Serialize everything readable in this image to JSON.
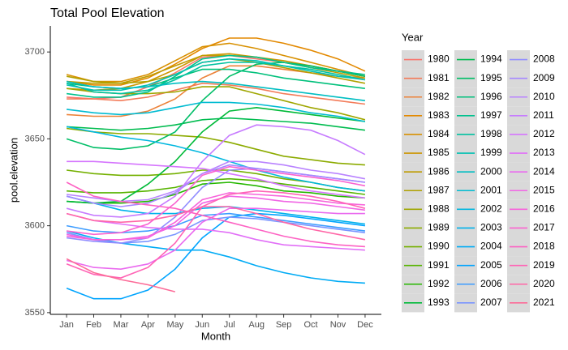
{
  "chart_data": {
    "type": "line",
    "title": "Total Pool Elevation",
    "x_label": "Month",
    "y_label": "pool.elevation",
    "legend_title": "Year",
    "legend_position": "right",
    "grid": false,
    "categories": [
      "Jan",
      "Feb",
      "Mar",
      "Apr",
      "May",
      "Jun",
      "Jul",
      "Aug",
      "Sep",
      "Oct",
      "Nov",
      "Dec"
    ],
    "ylim": [
      3549,
      3715
    ],
    "yticks": [
      3550,
      3600,
      3650,
      3700
    ],
    "series": [
      {
        "name": "1980",
        "color": "#F8766D",
        "values": [
          3674,
          3673,
          3674,
          3680,
          3688,
          3697,
          3698,
          3696,
          3694,
          3692,
          3689,
          3686
        ]
      },
      {
        "name": "1981",
        "color": "#F37B59",
        "values": [
          3673,
          3673,
          3672,
          3674,
          3678,
          3682,
          3681,
          3679,
          3676,
          3674,
          3672,
          3670
        ]
      },
      {
        "name": "1982",
        "color": "#EC8239",
        "values": [
          3664,
          3663,
          3663,
          3666,
          3673,
          3685,
          3692,
          3692,
          3690,
          3688,
          3686,
          3685
        ]
      },
      {
        "name": "1983",
        "color": "#E38900",
        "values": [
          3683,
          3681,
          3681,
          3685,
          3693,
          3702,
          3708,
          3708,
          3705,
          3701,
          3696,
          3689
        ]
      },
      {
        "name": "1984",
        "color": "#D89000",
        "values": [
          3687,
          3683,
          3683,
          3687,
          3695,
          3703,
          3705,
          3702,
          3698,
          3694,
          3690,
          3686
        ]
      },
      {
        "name": "1985",
        "color": "#CD9600",
        "values": [
          3679,
          3678,
          3679,
          3683,
          3690,
          3698,
          3699,
          3697,
          3695,
          3692,
          3689,
          3686
        ]
      },
      {
        "name": "1986",
        "color": "#BF9C00",
        "values": [
          3683,
          3682,
          3682,
          3686,
          3692,
          3698,
          3698,
          3697,
          3694,
          3691,
          3688,
          3685
        ]
      },
      {
        "name": "1987",
        "color": "#B0A100",
        "values": [
          3686,
          3683,
          3682,
          3683,
          3687,
          3694,
          3696,
          3694,
          3691,
          3688,
          3685,
          3682
        ]
      },
      {
        "name": "1988",
        "color": "#9FA600",
        "values": [
          3679,
          3677,
          3676,
          3676,
          3677,
          3680,
          3680,
          3676,
          3672,
          3668,
          3665,
          3661
        ]
      },
      {
        "name": "1989",
        "color": "#8CAB00",
        "values": [
          3656,
          3654,
          3653,
          3653,
          3652,
          3651,
          3648,
          3644,
          3640,
          3638,
          3636,
          3635
        ]
      },
      {
        "name": "1990",
        "color": "#74B000",
        "values": [
          3632,
          3630,
          3629,
          3629,
          3630,
          3632,
          3632,
          3630,
          3627,
          3625,
          3622,
          3620
        ]
      },
      {
        "name": "1991",
        "color": "#57B400",
        "values": [
          3620,
          3619,
          3619,
          3620,
          3622,
          3626,
          3627,
          3626,
          3624,
          3622,
          3620,
          3618
        ]
      },
      {
        "name": "1992",
        "color": "#26B700",
        "values": [
          3614,
          3613,
          3613,
          3614,
          3618,
          3624,
          3625,
          3623,
          3620,
          3619,
          3617,
          3616
        ]
      },
      {
        "name": "1993",
        "color": "#00BA38",
        "values": [
          3614,
          3613,
          3614,
          3624,
          3637,
          3654,
          3666,
          3668,
          3666,
          3664,
          3662,
          3660
        ]
      },
      {
        "name": "1994",
        "color": "#00BC4F",
        "values": [
          3657,
          3656,
          3655,
          3656,
          3658,
          3661,
          3662,
          3661,
          3660,
          3659,
          3657,
          3655
        ]
      },
      {
        "name": "1995",
        "color": "#00BE67",
        "values": [
          3650,
          3645,
          3644,
          3646,
          3654,
          3672,
          3686,
          3693,
          3694,
          3692,
          3689,
          3686
        ]
      },
      {
        "name": "1996",
        "color": "#00C07B",
        "values": [
          3682,
          3680,
          3679,
          3680,
          3685,
          3690,
          3690,
          3688,
          3685,
          3683,
          3681,
          3679
        ]
      },
      {
        "name": "1997",
        "color": "#00C18E",
        "values": [
          3676,
          3674,
          3674,
          3677,
          3686,
          3696,
          3698,
          3697,
          3694,
          3691,
          3689,
          3687
        ]
      },
      {
        "name": "1998",
        "color": "#00C1A0",
        "values": [
          3682,
          3677,
          3676,
          3678,
          3684,
          3692,
          3694,
          3694,
          3692,
          3690,
          3687,
          3684
        ]
      },
      {
        "name": "1999",
        "color": "#00C0B2",
        "values": [
          3681,
          3678,
          3678,
          3681,
          3687,
          3694,
          3696,
          3695,
          3692,
          3689,
          3686,
          3684
        ]
      },
      {
        "name": "2000",
        "color": "#00BEC2",
        "values": [
          3683,
          3680,
          3679,
          3680,
          3682,
          3683,
          3682,
          3680,
          3678,
          3676,
          3674,
          3672
        ]
      },
      {
        "name": "2001",
        "color": "#00BBD1",
        "values": [
          3667,
          3665,
          3664,
          3665,
          3668,
          3671,
          3671,
          3670,
          3668,
          3665,
          3663,
          3660
        ]
      },
      {
        "name": "2002",
        "color": "#00B7DF",
        "values": [
          3657,
          3654,
          3651,
          3649,
          3646,
          3642,
          3637,
          3632,
          3628,
          3625,
          3622,
          3620
        ]
      },
      {
        "name": "2003",
        "color": "#00B2EB",
        "values": [
          3617,
          3613,
          3609,
          3607,
          3607,
          3610,
          3611,
          3609,
          3607,
          3605,
          3603,
          3601
        ]
      },
      {
        "name": "2004",
        "color": "#00ABF5",
        "values": [
          3597,
          3593,
          3590,
          3588,
          3586,
          3586,
          3582,
          3577,
          3573,
          3570,
          3568,
          3567
        ]
      },
      {
        "name": "2005",
        "color": "#00A4FE",
        "values": [
          3564,
          3558,
          3558,
          3563,
          3575,
          3593,
          3605,
          3607,
          3606,
          3604,
          3602,
          3600
        ]
      },
      {
        "name": "2006",
        "color": "#3D9CFF",
        "values": [
          3600,
          3597,
          3596,
          3597,
          3600,
          3606,
          3607,
          3605,
          3603,
          3601,
          3599,
          3597
        ]
      },
      {
        "name": "2007",
        "color": "#7B95FF",
        "values": [
          3596,
          3592,
          3590,
          3591,
          3595,
          3603,
          3605,
          3604,
          3602,
          3600,
          3598,
          3596
        ]
      },
      {
        "name": "2008",
        "color": "#928EFF",
        "values": [
          3593,
          3591,
          3590,
          3593,
          3605,
          3622,
          3632,
          3633,
          3631,
          3629,
          3627,
          3625
        ]
      },
      {
        "name": "2009",
        "color": "#A688FF",
        "values": [
          3617,
          3613,
          3611,
          3613,
          3619,
          3630,
          3635,
          3633,
          3631,
          3629,
          3627,
          3625
        ]
      },
      {
        "name": "2010",
        "color": "#B983FF",
        "values": [
          3618,
          3616,
          3614,
          3615,
          3620,
          3630,
          3637,
          3637,
          3635,
          3632,
          3630,
          3627
        ]
      },
      {
        "name": "2011",
        "color": "#C77CFF",
        "values": [
          3610,
          3606,
          3605,
          3607,
          3617,
          3637,
          3652,
          3658,
          3657,
          3655,
          3649,
          3641
        ]
      },
      {
        "name": "2012",
        "color": "#D575FE",
        "values": [
          3637,
          3637,
          3636,
          3635,
          3634,
          3633,
          3630,
          3627,
          3623,
          3620,
          3618,
          3616
        ]
      },
      {
        "name": "2013",
        "color": "#E16FF7",
        "values": [
          3607,
          3603,
          3601,
          3599,
          3598,
          3598,
          3596,
          3592,
          3589,
          3588,
          3587,
          3586
        ]
      },
      {
        "name": "2014",
        "color": "#EA6AEF",
        "values": [
          3580,
          3576,
          3575,
          3578,
          3586,
          3602,
          3610,
          3610,
          3609,
          3608,
          3607,
          3607
        ]
      },
      {
        "name": "2015",
        "color": "#F166E5",
        "values": [
          3595,
          3592,
          3592,
          3594,
          3600,
          3613,
          3617,
          3616,
          3614,
          3613,
          3611,
          3609
        ]
      },
      {
        "name": "2016",
        "color": "#F763DB",
        "values": [
          3594,
          3592,
          3592,
          3593,
          3602,
          3615,
          3619,
          3618,
          3617,
          3615,
          3613,
          3612
        ]
      },
      {
        "name": "2017",
        "color": "#FA62D0",
        "values": [
          3597,
          3595,
          3596,
          3601,
          3613,
          3629,
          3634,
          3632,
          3630,
          3628,
          3626,
          3623
        ]
      },
      {
        "name": "2018",
        "color": "#FD62C3",
        "values": [
          3625,
          3617,
          3614,
          3612,
          3610,
          3606,
          3602,
          3598,
          3594,
          3591,
          3589,
          3588
        ]
      },
      {
        "name": "2019",
        "color": "#FF63B5",
        "values": [
          3578,
          3572,
          3570,
          3576,
          3590,
          3611,
          3618,
          3620,
          3619,
          3617,
          3614,
          3610
        ]
      },
      {
        "name": "2020",
        "color": "#FF67A7",
        "values": [
          3607,
          3603,
          3602,
          3603,
          3606,
          3611,
          3611,
          3607,
          3602,
          3598,
          3595,
          3592
        ]
      },
      {
        "name": "2021",
        "color": "#FC6B98",
        "values": [
          3581,
          3573,
          3569,
          3566,
          3562,
          null,
          null,
          null,
          null,
          null,
          null,
          null
        ]
      }
    ]
  }
}
